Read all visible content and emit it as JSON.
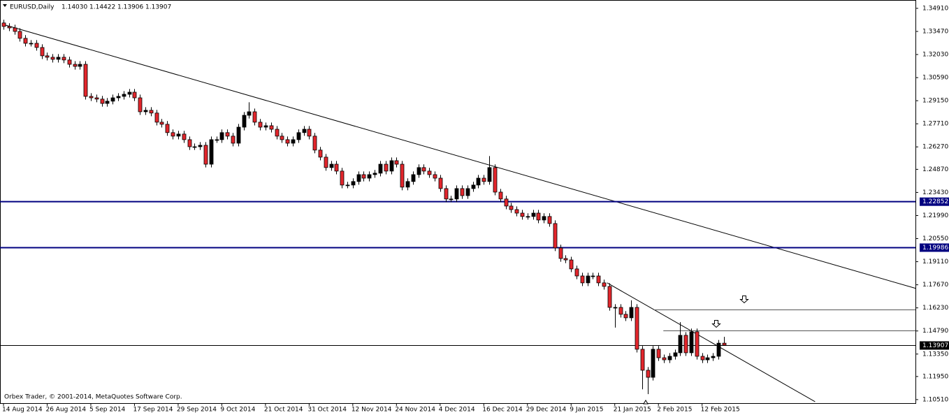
{
  "chart_data": {
    "type": "candlestick",
    "symbol": "EURUSD,Daily",
    "header_ohlc": [
      {
        "value": 1.1403,
        "label": "1.14030"
      },
      1.14422,
      1.13906,
      1.13907
    ],
    "footer": "Orbex Trader, © 2001-2014, MetaQuotes Software Corp.",
    "categories": [
      "14 Aug 2014",
      null,
      null,
      null,
      null,
      null,
      null,
      null,
      "26 Aug 2014",
      null,
      null,
      null,
      null,
      null,
      null,
      null,
      "5 Sep 2014",
      null,
      null,
      null,
      null,
      null,
      null,
      null,
      "17 Sep 2014",
      null,
      null,
      null,
      null,
      null,
      null,
      null,
      "29 Sep 2014",
      null,
      null,
      null,
      null,
      null,
      null,
      null,
      "9 Oct 2014",
      null,
      null,
      null,
      null,
      null,
      null,
      null,
      "21 Oct 2014",
      null,
      null,
      null,
      null,
      null,
      null,
      null,
      "31 Oct 2014",
      null,
      null,
      null,
      null,
      null,
      null,
      null,
      "12 Nov 2014",
      null,
      null,
      null,
      null,
      null,
      null,
      null,
      "24 Nov 2014",
      null,
      null,
      null,
      null,
      null,
      null,
      null,
      "4 Dec 2014",
      null,
      null,
      null,
      null,
      null,
      null,
      null,
      "16 Dec 2014",
      null,
      null,
      null,
      null,
      null,
      null,
      null,
      "29 Dec 2014",
      null,
      null,
      null,
      null,
      null,
      null,
      null,
      "9 Jan 2015",
      null,
      null,
      null,
      null,
      null,
      null,
      null,
      "21 Jan 2015",
      null,
      null,
      null,
      null,
      null,
      null,
      null,
      "2 Feb 2015",
      null,
      null,
      null,
      null,
      null,
      null,
      null,
      "12 Feb 2015",
      null,
      null,
      null,
      null
    ],
    "open": [
      1.34,
      1.3378,
      1.3369,
      1.3347,
      1.3304,
      1.3273,
      1.3273,
      1.3247,
      1.3195,
      1.3186,
      1.3173,
      1.3186,
      1.3169,
      1.3142,
      1.3129,
      1.3142,
      1.2942,
      1.2933,
      1.2925,
      1.2898,
      1.2912,
      1.2933,
      1.2942,
      1.2955,
      1.2968,
      1.2933,
      1.2846,
      1.2855,
      1.2838,
      1.2781,
      1.2768,
      1.2716,
      1.2694,
      1.2707,
      1.2672,
      1.2628,
      1.2628,
      1.2637,
      1.2519,
      1.2672,
      1.2672,
      1.2716,
      1.2694,
      1.265,
      1.275,
      1.2824,
      1.2846,
      1.2781,
      1.275,
      1.2759,
      1.2737,
      1.2694,
      1.2672,
      1.265,
      1.2672,
      1.2716,
      1.2737,
      1.2694,
      1.2607,
      1.2563,
      1.2498,
      1.2519,
      1.2476,
      1.2389,
      1.2389,
      1.2411,
      1.2454,
      1.2432,
      1.2454,
      1.2463,
      1.2519,
      1.2476,
      1.2541,
      1.2519,
      1.2376,
      1.2411,
      1.2454,
      1.2498,
      1.2476,
      1.2454,
      1.2432,
      1.2367,
      1.2302,
      1.2302,
      1.2367,
      1.2323,
      1.2367,
      1.2389,
      1.2432,
      1.2411,
      1.2498,
      1.2345,
      1.2302,
      1.2258,
      1.2236,
      1.2214,
      1.2193,
      1.2193,
      1.2214,
      1.2171,
      1.2193,
      1.2149,
      1.1997,
      1.1931,
      1.1922,
      1.1866,
      1.1822,
      1.1779,
      1.1822,
      1.1822,
      1.1779,
      1.1757,
      1.1626,
      1.1626,
      1.1583,
      1.1561,
      1.1626,
      1.1365,
      1.1234,
      1.119,
      1.1365,
      1.1312,
      1.1299,
      1.1321,
      1.1343,
      1.1452,
      1.1343,
      1.1474,
      1.1321,
      1.1299,
      1.1312,
      1.1321,
      1.1403
    ],
    "high": [
      1.342,
      1.3398,
      1.3389,
      1.3367,
      1.3324,
      1.3293,
      1.3293,
      1.3267,
      1.3215,
      1.3206,
      1.3206,
      1.3206,
      1.3189,
      1.3162,
      1.3162,
      1.3162,
      1.2962,
      1.2953,
      1.2945,
      1.2932,
      1.2953,
      1.2962,
      1.2975,
      1.2988,
      1.2988,
      1.2953,
      1.2875,
      1.2875,
      1.2858,
      1.2801,
      1.2788,
      1.2736,
      1.2727,
      1.2727,
      1.2692,
      1.2648,
      1.2657,
      1.2657,
      1.2692,
      1.2692,
      1.2736,
      1.2736,
      1.2714,
      1.277,
      1.2844,
      1.2905,
      1.2866,
      1.2801,
      1.2779,
      1.2779,
      1.2757,
      1.2714,
      1.2692,
      1.2692,
      1.2736,
      1.2757,
      1.2757,
      1.2714,
      1.2627,
      1.2583,
      1.2539,
      1.2539,
      1.2496,
      1.2409,
      1.2431,
      1.2474,
      1.2474,
      1.2474,
      1.2483,
      1.2539,
      1.2539,
      1.2561,
      1.2561,
      1.2539,
      1.2431,
      1.2474,
      1.2518,
      1.2518,
      1.2496,
      1.2474,
      1.2452,
      1.2387,
      1.2322,
      1.2387,
      1.2387,
      1.2387,
      1.2409,
      1.2452,
      1.2452,
      1.257,
      1.2518,
      1.2365,
      1.2322,
      1.2278,
      1.2256,
      1.2234,
      1.2213,
      1.2234,
      1.2234,
      1.2213,
      1.2213,
      1.2169,
      1.2017,
      1.1951,
      1.1942,
      1.1886,
      1.1842,
      1.1842,
      1.1842,
      1.1842,
      1.1799,
      1.1777,
      1.1646,
      1.1646,
      1.1603,
      1.167,
      1.1646,
      1.1385,
      1.1254,
      1.1385,
      1.1385,
      1.1332,
      1.1341,
      1.1363,
      1.1534,
      1.1472,
      1.1494,
      1.1494,
      1.1341,
      1.1332,
      1.1341,
      1.1423,
      1.14422
    ],
    "low": [
      1.3358,
      1.3349,
      1.3327,
      1.3284,
      1.3253,
      1.3253,
      1.3227,
      1.3175,
      1.3166,
      1.3153,
      1.3153,
      1.3149,
      1.3122,
      1.3109,
      1.3109,
      1.2922,
      1.2913,
      1.2905,
      1.2878,
      1.2878,
      1.2892,
      1.2913,
      1.2922,
      1.2935,
      1.2913,
      1.2826,
      1.2826,
      1.2818,
      1.2761,
      1.2748,
      1.2696,
      1.2674,
      1.2674,
      1.2652,
      1.2608,
      1.2608,
      1.2608,
      1.2499,
      1.2499,
      1.2652,
      1.2652,
      1.2674,
      1.263,
      1.263,
      1.273,
      1.2804,
      1.2761,
      1.273,
      1.273,
      1.2717,
      1.2674,
      1.2652,
      1.263,
      1.263,
      1.2652,
      1.2696,
      1.2674,
      1.2587,
      1.2543,
      1.2478,
      1.2478,
      1.2456,
      1.2369,
      1.2369,
      1.2369,
      1.2391,
      1.2412,
      1.2412,
      1.2434,
      1.2443,
      1.2456,
      1.2456,
      1.2499,
      1.2356,
      1.2356,
      1.2391,
      1.2434,
      1.2456,
      1.2434,
      1.2412,
      1.2347,
      1.2282,
      1.2282,
      1.2282,
      1.2303,
      1.2303,
      1.2347,
      1.2369,
      1.2391,
      1.2391,
      1.2325,
      1.2282,
      1.2238,
      1.2216,
      1.2194,
      1.2173,
      1.2173,
      1.2173,
      1.2151,
      1.2151,
      1.2129,
      1.1977,
      1.1911,
      1.1902,
      1.1846,
      1.1802,
      1.1759,
      1.1759,
      1.1802,
      1.1759,
      1.1737,
      1.1606,
      1.15,
      1.1563,
      1.1541,
      1.1541,
      1.1345,
      1.1115,
      1.1085,
      1.117,
      1.1292,
      1.1279,
      1.1279,
      1.1301,
      1.1323,
      1.1323,
      1.1323,
      1.1301,
      1.1279,
      1.1279,
      1.1292,
      1.1301,
      1.13906
    ],
    "close": [
      1.3378,
      1.3369,
      1.3347,
      1.3304,
      1.3273,
      1.3273,
      1.3247,
      1.3195,
      1.3186,
      1.3173,
      1.3186,
      1.3169,
      1.3142,
      1.3129,
      1.3142,
      1.2942,
      1.2933,
      1.2925,
      1.2898,
      1.2912,
      1.2933,
      1.2942,
      1.2955,
      1.2968,
      1.2933,
      1.2846,
      1.2855,
      1.2838,
      1.2781,
      1.2768,
      1.2716,
      1.2694,
      1.2707,
      1.2672,
      1.2628,
      1.2628,
      1.2637,
      1.2519,
      1.2672,
      1.2672,
      1.2716,
      1.2694,
      1.265,
      1.275,
      1.2824,
      1.2846,
      1.2781,
      1.275,
      1.2759,
      1.2737,
      1.2694,
      1.2672,
      1.265,
      1.2672,
      1.2716,
      1.2737,
      1.2694,
      1.2607,
      1.2563,
      1.2498,
      1.2519,
      1.2476,
      1.2389,
      1.2389,
      1.2411,
      1.2454,
      1.2432,
      1.2454,
      1.2463,
      1.2519,
      1.2476,
      1.2541,
      1.2519,
      1.2376,
      1.2411,
      1.2454,
      1.2498,
      1.2476,
      1.2454,
      1.2432,
      1.2367,
      1.2302,
      1.2302,
      1.2367,
      1.2323,
      1.2367,
      1.2389,
      1.2432,
      1.2411,
      1.2498,
      1.2345,
      1.2302,
      1.2258,
      1.2236,
      1.2214,
      1.2193,
      1.2193,
      1.2214,
      1.2171,
      1.2193,
      1.2149,
      1.1997,
      1.1931,
      1.1922,
      1.1866,
      1.1822,
      1.1779,
      1.1822,
      1.1822,
      1.1779,
      1.1757,
      1.1626,
      1.1626,
      1.1583,
      1.1561,
      1.1626,
      1.1365,
      1.1234,
      1.119,
      1.1365,
      1.1312,
      1.1299,
      1.1321,
      1.1343,
      1.1452,
      1.1343,
      1.1474,
      1.1321,
      1.1299,
      1.1312,
      1.1321,
      1.1403,
      1.13907
    ],
    "up_color": "#000000",
    "down_color": "#e3262c",
    "ylim": [
      1.1029,
      1.3543
    ],
    "yticks": [
      {
        "value": 1.3491,
        "label": "1.34910"
      },
      {
        "value": 1.3347,
        "label": "1.33470"
      },
      {
        "value": 1.3203,
        "label": "1.32030"
      },
      {
        "value": 1.3059,
        "label": "1.30590"
      },
      {
        "value": 1.2915,
        "label": "1.29150"
      },
      {
        "value": 1.2771,
        "label": "1.27710"
      },
      {
        "value": 1.2627,
        "label": "1.26270"
      },
      {
        "value": 1.2487,
        "label": "1.24870"
      },
      {
        "value": 1.2343,
        "label": "1.23430"
      },
      {
        "value": 1.2199,
        "label": "1.21990"
      },
      {
        "value": 1.2055,
        "label": "1.20550"
      },
      {
        "value": 1.1911,
        "label": "1.19110"
      },
      {
        "value": 1.1767,
        "label": "1.17670"
      },
      {
        "value": 1.1623,
        "label": "1.16230"
      },
      {
        "value": 1.1479,
        "label": "1.14790"
      },
      {
        "value": 1.1335,
        "label": "1.13350"
      },
      {
        "value": 1.1195,
        "label": "1.11950"
      },
      {
        "value": 1.1051,
        "label": "1.10510"
      }
    ],
    "levels": [
      1.22852,
      1.19986
    ],
    "level_color": "#000080",
    "last_price": 1.13907,
    "minor_levels": [
      {
        "value": 1.1614,
        "from": 119.2
      },
      {
        "value": 1.1483,
        "from": 120.9
      }
    ],
    "trendlines": [
      {
        "x": [
          0,
          167.2
        ],
        "y": [
          1.339,
          1.1744
        ]
      },
      {
        "x": [
          110.6,
          148.7
        ],
        "y": [
          1.1779,
          1.1038
        ]
      }
    ],
    "grid": false
  }
}
